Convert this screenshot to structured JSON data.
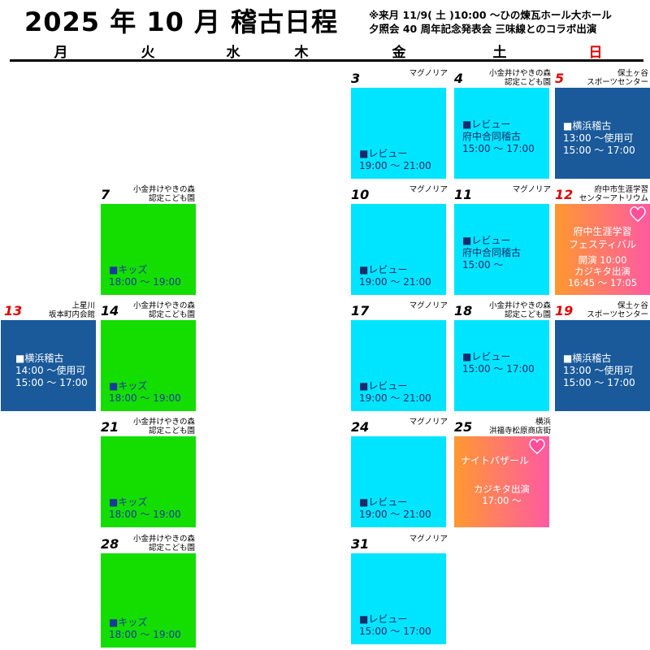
{
  "title": "2025 年 10 月 稽古日程",
  "notes": [
    "※来月 11/9( 土 )10:00 〜ひの煉瓦ホール大ホール",
    "夕照会 40 周年記念発表会 三味線とのコラボ出演"
  ],
  "weekdays": [
    "月",
    "火",
    "水",
    "木",
    "金",
    "土",
    "日"
  ],
  "colors": {
    "cyan": "#00e5ff",
    "green": "#14dd00",
    "navy": "#1a5a9a",
    "sunday": "#e00000"
  },
  "days": [
    {
      "day": "3",
      "loc": "マグノリア",
      "event": "■レビュー\n19:00 〜 21:00"
    },
    {
      "day": "4",
      "loc": "小金井けやきの森\n認定こども園",
      "event": "■レビュー\n府中合同稽古\n15:00 〜 17:00"
    },
    {
      "day": "5",
      "loc": "保土ヶ谷\nスポーツセンター",
      "event": "■横浜稽古\n13:00 〜使用可\n15:00 〜 17:00"
    },
    {
      "day": "7",
      "loc": "小金井けやきの森\n認定こども園",
      "event": "■キッズ\n18:00 〜 19:00"
    },
    {
      "day": "10",
      "loc": "マグノリア",
      "event": "■レビュー\n19:00 〜 21:00"
    },
    {
      "day": "11",
      "loc": "マグノリア",
      "event": "■レビュー\n府中合同稽古\n15:00 〜"
    },
    {
      "day": "12",
      "loc": "府中市生涯学習\nセンターアトリウム",
      "event1": "府中生涯学習\nフェスティバル",
      "event2": "開演 10:00\nカジキタ出演\n16:45 〜 17:05"
    },
    {
      "day": "13",
      "loc": "上星川\n坂本町内会館",
      "event": "■横浜稽古\n14:00 〜使用可\n15:00 〜 17:00"
    },
    {
      "day": "14",
      "loc": "小金井けやきの森\n認定こども園",
      "event": "■キッズ\n18:00 〜 19:00"
    },
    {
      "day": "17",
      "loc": "マグノリア",
      "event": "■レビュー\n19:00 〜 21:00"
    },
    {
      "day": "18",
      "loc": "小金井けやきの森\n認定こども園",
      "event": "■レビュー\n15:00 〜 17:00"
    },
    {
      "day": "19",
      "loc": "保土ヶ谷\nスポーツセンター",
      "event": "■横浜稽古\n13:00 〜使用可\n15:00 〜 17:00"
    },
    {
      "day": "21",
      "loc": "小金井けやきの森\n認定こども園",
      "event": "■キッズ\n18:00 〜 19:00"
    },
    {
      "day": "24",
      "loc": "マグノリア",
      "event": "■レビュー\n19:00 〜 21:00"
    },
    {
      "day": "25",
      "loc": "横浜\n洪福寺松原商店街",
      "event1": "ナイトバザール",
      "event2": "カジキタ出演\n17:00 〜"
    },
    {
      "day": "28",
      "loc": "小金井けやきの森\n認定こども園",
      "event": "■キッズ\n18:00 〜 19:00"
    },
    {
      "day": "31",
      "loc": "マグノリア",
      "event": "■レビュー\n15:00 〜 17:00"
    }
  ]
}
